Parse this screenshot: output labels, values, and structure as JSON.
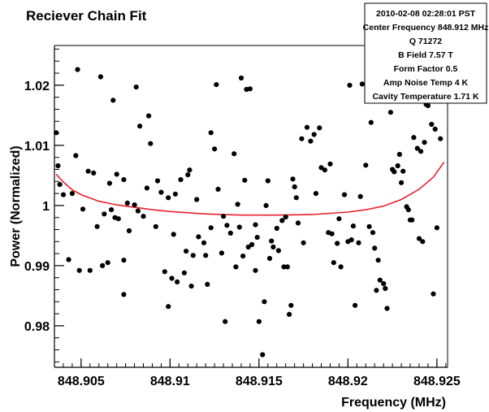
{
  "chart_data": {
    "type": "scatter",
    "title": "Reciever Chain Fit",
    "xlabel": "Frequency (MHz)",
    "ylabel": "Power (Normalized)",
    "xlim": [
      848.9035,
      848.9256
    ],
    "ylim": [
      0.9731,
      1.0266
    ],
    "x_ticks": [
      848.905,
      848.91,
      848.915,
      848.92,
      848.925
    ],
    "x_tick_labels": [
      "848.905",
      "848.91",
      "848.915",
      "848.92",
      "848.925"
    ],
    "y_ticks": [
      0.98,
      0.99,
      1.0,
      1.01,
      1.02
    ],
    "y_tick_labels": [
      "0.98",
      "0.99",
      "1",
      "1.01",
      "1.02"
    ],
    "grid": false,
    "marker_color": "#000000",
    "fit_color": "#e8202a",
    "stats_box": {
      "position": "top-right",
      "lines": [
        "2010-02-08  02:28:01 PST",
        "Center Frequency 848.912 MHz",
        "Q 71272",
        "B Field 7.57 T",
        "Form Factor 0.5",
        "Amp Noise Temp 4 K",
        "Cavity Temperature 1.71 K"
      ]
    },
    "series": [
      {
        "type": "scatter",
        "points": [
          [
            848.9036,
            1.0121
          ],
          [
            848.9037,
            1.0066
          ],
          [
            848.9038,
            1.0035
          ],
          [
            848.904,
            1.0018
          ],
          [
            848.9043,
            0.991
          ],
          [
            848.9045,
            1.002
          ],
          [
            848.9047,
            1.0083
          ],
          [
            848.9048,
            1.0226
          ],
          [
            848.9049,
            0.9892
          ],
          [
            848.9051,
            0.9994
          ],
          [
            848.9054,
            1.0057
          ],
          [
            848.9055,
            0.9892
          ],
          [
            848.9057,
            1.0054
          ],
          [
            848.9059,
            0.9965
          ],
          [
            848.9061,
            1.0214
          ],
          [
            848.9062,
            0.99
          ],
          [
            848.9063,
            0.9986
          ],
          [
            848.9065,
            0.9905
          ],
          [
            848.9066,
            1.0037
          ],
          [
            848.9067,
            0.9993
          ],
          [
            848.9068,
            1.0175
          ],
          [
            848.9069,
            0.998
          ],
          [
            848.907,
            1.0052
          ],
          [
            848.9071,
            0.9978
          ],
          [
            848.9074,
            1.0043
          ],
          [
            848.9074,
            0.9909
          ],
          [
            848.9074,
            0.9852
          ],
          [
            848.9076,
            1.0004
          ],
          [
            848.9077,
            0.9958
          ],
          [
            848.908,
            1.0001
          ],
          [
            848.9081,
            1.0197
          ],
          [
            848.9082,
            0.9991
          ],
          [
            848.9083,
            1.0132
          ],
          [
            848.9085,
            0.9982
          ],
          [
            848.9087,
            1.0029
          ],
          [
            848.9088,
            1.0149
          ],
          [
            848.9089,
            1.0103
          ],
          [
            848.9092,
            0.9965
          ],
          [
            848.9093,
            1.0041
          ],
          [
            848.9095,
            1.0022
          ],
          [
            848.9097,
            0.989
          ],
          [
            848.9099,
            1.0013
          ],
          [
            848.9099,
            0.9832
          ],
          [
            848.9101,
            0.9879
          ],
          [
            848.9102,
            0.9952
          ],
          [
            848.9103,
            1.0019
          ],
          [
            848.9104,
            0.9873
          ],
          [
            848.9106,
            1.0043
          ],
          [
            848.9108,
            0.9888
          ],
          [
            848.9109,
            0.9924
          ],
          [
            848.911,
            1.0051
          ],
          [
            848.9111,
            1.0059
          ],
          [
            848.9112,
            0.9866
          ],
          [
            848.9113,
            0.9917
          ],
          [
            848.9115,
            1.001
          ],
          [
            848.9116,
            0.9948
          ],
          [
            848.9119,
            0.9938
          ],
          [
            848.912,
            0.9917
          ],
          [
            848.9121,
            0.9869
          ],
          [
            848.9123,
            1.0121
          ],
          [
            848.9123,
            0.9963
          ],
          [
            848.9125,
            1.0094
          ],
          [
            848.9126,
            1.0201
          ],
          [
            848.9127,
            1.0027
          ],
          [
            848.9129,
            0.9921
          ],
          [
            848.913,
            0.9982
          ],
          [
            848.9131,
            0.9807
          ],
          [
            848.9132,
            0.9967
          ],
          [
            848.9134,
            0.9954
          ],
          [
            848.9136,
            1.0086
          ],
          [
            848.9137,
            0.9898
          ],
          [
            848.9138,
            1.0002
          ],
          [
            848.9139,
            0.9964
          ],
          [
            848.914,
            1.0212
          ],
          [
            848.9141,
            0.9916
          ],
          [
            848.9142,
            1.0042
          ],
          [
            848.9143,
            1.0193
          ],
          [
            848.9144,
            0.9931
          ],
          [
            848.9145,
            1.0194
          ],
          [
            848.9146,
            0.9935
          ],
          [
            848.9148,
            0.9968
          ],
          [
            848.9148,
            0.9892
          ],
          [
            848.9149,
            0.9947
          ],
          [
            848.915,
            0.9807
          ],
          [
            848.9152,
            0.9752
          ],
          [
            848.9153,
            0.984
          ],
          [
            848.9154,
            1.0
          ],
          [
            848.9155,
            1.0041
          ],
          [
            848.9156,
            0.9912
          ],
          [
            848.9157,
            0.9941
          ],
          [
            848.9158,
            0.9931
          ],
          [
            848.916,
            0.9962
          ],
          [
            848.9161,
            0.9925
          ],
          [
            848.9163,
            0.9975
          ],
          [
            848.9164,
            0.9898
          ],
          [
            848.9165,
            0.9981
          ],
          [
            848.9166,
            0.9898
          ],
          [
            848.9167,
            0.9819
          ],
          [
            848.9168,
            0.9834
          ],
          [
            848.9169,
            1.0044
          ],
          [
            848.917,
            1.0031
          ],
          [
            848.9171,
            1.0013
          ],
          [
            848.9172,
            0.9971
          ],
          [
            848.9174,
            1.0111
          ],
          [
            848.9175,
            0.9938
          ],
          [
            848.9177,
            1.013
          ],
          [
            848.9179,
            1.0107
          ],
          [
            848.9181,
            1.0118
          ],
          [
            848.9182,
            1.002
          ],
          [
            848.9184,
            1.0129
          ],
          [
            848.9185,
            1.0063
          ],
          [
            848.9187,
            1.0059
          ],
          [
            848.9189,
            0.9955
          ],
          [
            848.919,
            1.0069
          ],
          [
            848.9191,
            0.9953
          ],
          [
            848.9192,
            0.9905
          ],
          [
            848.9194,
            0.9937
          ],
          [
            848.9195,
            0.9978
          ],
          [
            848.9196,
            0.9898
          ],
          [
            848.9198,
            1.0018
          ],
          [
            848.92,
            0.994
          ],
          [
            848.9201,
            1.02
          ],
          [
            848.9202,
            0.9943
          ],
          [
            848.9203,
            0.9966
          ],
          [
            848.9204,
            0.9834
          ],
          [
            848.9206,
            0.9938
          ],
          [
            848.9207,
            1.0015
          ],
          [
            848.9208,
            1.0202
          ],
          [
            848.921,
            1.0067
          ],
          [
            848.9212,
            0.9965
          ],
          [
            848.9213,
            1.0138
          ],
          [
            848.9214,
            0.9955
          ],
          [
            848.9215,
            0.9929
          ],
          [
            848.9216,
            0.9859
          ],
          [
            848.9217,
            0.9909
          ],
          [
            848.9218,
            0.9876
          ],
          [
            848.922,
            0.987
          ],
          [
            848.9221,
            0.9862
          ],
          [
            848.9222,
            0.9829
          ],
          [
            848.9224,
            1.0155
          ],
          [
            848.9225,
            1.006
          ],
          [
            848.9226,
            1.0056
          ],
          [
            848.9228,
            1.0066
          ],
          [
            848.9229,
            1.0085
          ],
          [
            848.923,
            1.0038
          ],
          [
            848.9231,
            1.0057
          ],
          [
            848.9233,
            0.9998
          ],
          [
            848.9234,
            0.9993
          ],
          [
            848.9235,
            0.9976
          ],
          [
            848.9236,
            0.9976
          ],
          [
            848.9237,
            1.0113
          ],
          [
            848.9239,
            1.0095
          ],
          [
            848.924,
            0.9945
          ],
          [
            848.9241,
            1.009
          ],
          [
            848.9242,
            0.994
          ],
          [
            848.9243,
            1.0105
          ],
          [
            848.9244,
            1.0168
          ],
          [
            848.9245,
            1.0166
          ],
          [
            848.9247,
            1.0135
          ],
          [
            848.9248,
            0.9853
          ],
          [
            848.9249,
            1.0127
          ],
          [
            848.925,
            0.9963
          ],
          [
            848.9252,
            1.0111
          ]
        ]
      },
      {
        "type": "line",
        "fit": "parabola",
        "points": [
          [
            848.9036,
            1.0052
          ],
          [
            848.904,
            1.0039
          ],
          [
            848.9045,
            1.0026
          ],
          [
            848.905,
            1.0018
          ],
          [
            848.906,
            1.0007
          ],
          [
            848.907,
            1.0001
          ],
          [
            848.908,
            0.9997
          ],
          [
            848.909,
            0.9993
          ],
          [
            848.91,
            0.999
          ],
          [
            848.912,
            0.9986
          ],
          [
            848.914,
            0.9984
          ],
          [
            848.916,
            0.9984
          ],
          [
            848.918,
            0.9985
          ],
          [
            848.92,
            0.9989
          ],
          [
            848.921,
            0.9993
          ],
          [
            848.922,
            0.9999
          ],
          [
            848.923,
            1.001
          ],
          [
            848.924,
            1.0027
          ],
          [
            848.9248,
            1.0047
          ],
          [
            848.9254,
            1.0072
          ]
        ]
      }
    ]
  }
}
